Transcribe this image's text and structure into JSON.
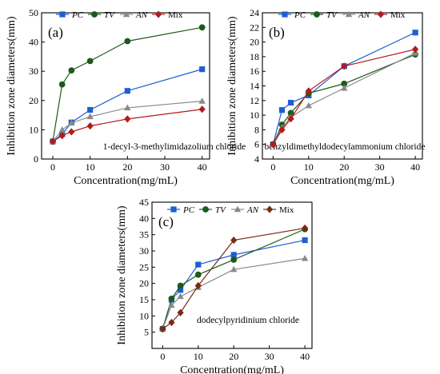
{
  "chart_data": [
    {
      "type": "line",
      "panel_label": "(a)",
      "annotation": "1-decyl-3-methylimidazolium chloride",
      "xlabel": "Concentration(mg/mL)",
      "ylabel": "Inhibition zone diameters(mm)",
      "xlim": [
        -3,
        42
      ],
      "ylim": [
        0,
        50
      ],
      "xticks": [
        0,
        10,
        20,
        30,
        40
      ],
      "yticks": [
        0,
        10,
        20,
        30,
        40,
        50
      ],
      "legend": "top",
      "x": [
        0,
        2.5,
        5,
        10,
        20,
        40
      ],
      "series": [
        {
          "name": "PC",
          "marker": "square",
          "color": "#1f5fd0",
          "values": [
            6,
            8.5,
            12.5,
            16.8,
            23.3,
            30.7
          ]
        },
        {
          "name": "TV",
          "marker": "circle",
          "color": "#1c5a1c",
          "values": [
            6,
            25.5,
            30.3,
            33.5,
            40.3,
            45
          ]
        },
        {
          "name": "AN",
          "marker": "triangle",
          "color": "#8a8a8a",
          "values": [
            6,
            10,
            12.3,
            14.5,
            17.5,
            19.8
          ]
        },
        {
          "name": "Mix",
          "marker": "diamond",
          "color": "#b31b1b",
          "values": [
            6,
            8,
            9.3,
            11.3,
            13.7,
            17
          ]
        }
      ]
    },
    {
      "type": "line",
      "panel_label": "(b)",
      "annotation": "benzyldimethyldodecylammonium chloride",
      "xlabel": "Concentration(mg/mL)",
      "ylabel": "Inhibition zone diameters(mm)",
      "xlim": [
        -3,
        42
      ],
      "ylim": [
        4,
        24
      ],
      "xticks": [
        0,
        10,
        20,
        30,
        40
      ],
      "yticks": [
        4,
        6,
        8,
        10,
        12,
        14,
        16,
        18,
        20,
        22,
        24
      ],
      "legend": "top",
      "x": [
        0,
        2.5,
        5,
        10,
        20,
        40
      ],
      "series": [
        {
          "name": "PC",
          "marker": "square",
          "color": "#1f5fd0",
          "values": [
            6,
            10.7,
            11.7,
            12.7,
            16.7,
            21.3
          ]
        },
        {
          "name": "TV",
          "marker": "circle",
          "color": "#1c5a1c",
          "values": [
            6,
            8.7,
            10.3,
            13,
            14.3,
            18.3
          ]
        },
        {
          "name": "AN",
          "marker": "triangle",
          "color": "#8a8a8a",
          "values": [
            6,
            8.3,
            9.7,
            11.3,
            13.7,
            18.5
          ]
        },
        {
          "name": "Mix",
          "marker": "diamond",
          "color": "#b31b1b",
          "values": [
            6,
            8,
            9.5,
            13.3,
            16.7,
            19
          ]
        }
      ]
    },
    {
      "type": "line",
      "panel_label": "(c)",
      "annotation": "dodecylpyridinium chloride",
      "xlabel": "Concentration(mg/mL)",
      "ylabel": "Inhibition zone diameters(mm)",
      "xlim": [
        -3,
        42
      ],
      "ylim": [
        0,
        45
      ],
      "xticks": [
        0,
        10,
        20,
        30,
        40
      ],
      "yticks": [
        5,
        10,
        15,
        20,
        25,
        30,
        35,
        40,
        45
      ],
      "legend": "top",
      "x": [
        0,
        2.5,
        5,
        10,
        20,
        40
      ],
      "series": [
        {
          "name": "PC",
          "marker": "square",
          "color": "#1f5fd0",
          "values": [
            6,
            15,
            18,
            25.8,
            28.8,
            33.3
          ]
        },
        {
          "name": "TV",
          "marker": "circle",
          "color": "#1c5a1c",
          "values": [
            6,
            15.3,
            19.3,
            22.7,
            27.3,
            36.7
          ]
        },
        {
          "name": "AN",
          "marker": "triangle",
          "color": "#8a8a8a",
          "values": [
            6,
            13.3,
            16,
            18.8,
            24.3,
            27.7
          ]
        },
        {
          "name": "Mix",
          "marker": "diamond",
          "color": "#7a2a12",
          "values": [
            6,
            8,
            11,
            19.3,
            33.3,
            37
          ]
        }
      ]
    }
  ]
}
